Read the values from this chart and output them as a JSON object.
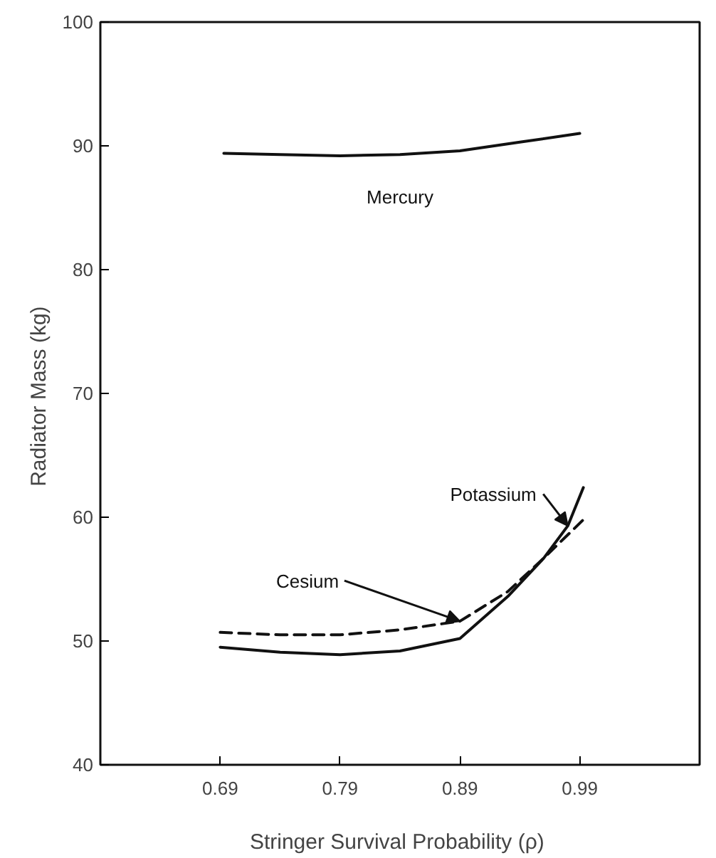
{
  "chart_data": {
    "type": "line",
    "xlabel": "Stringer  Survival Probability (ρ)",
    "ylabel": "Radiator Mass  (kg)",
    "xlim": [
      0.59,
      1.09
    ],
    "ylim": [
      40,
      100
    ],
    "xticks": [
      0.69,
      0.79,
      0.89,
      0.99
    ],
    "yticks": [
      40,
      50,
      60,
      70,
      80,
      90,
      100
    ],
    "grid": false,
    "legend": false,
    "series": [
      {
        "name": "Mercury",
        "color": "#111111",
        "line_style": "solid",
        "x": [
          0.693,
          0.74,
          0.79,
          0.84,
          0.89,
          0.94,
          0.99
        ],
        "values": [
          89.4,
          89.3,
          89.2,
          89.3,
          89.6,
          90.3,
          91.0
        ]
      },
      {
        "name": "Potassium",
        "color": "#111111",
        "line_style": "solid",
        "x": [
          0.69,
          0.74,
          0.79,
          0.84,
          0.89,
          0.93,
          0.96,
          0.98,
          0.993
        ],
        "values": [
          49.5,
          49.1,
          48.9,
          49.2,
          50.2,
          53.6,
          56.7,
          59.3,
          62.4
        ]
      },
      {
        "name": "Cesium",
        "color": "#111111",
        "line_style": "dashed",
        "x": [
          0.69,
          0.74,
          0.79,
          0.84,
          0.89,
          0.93,
          0.96,
          0.993
        ],
        "values": [
          50.7,
          50.5,
          50.5,
          50.9,
          51.6,
          54.0,
          56.7,
          59.8
        ]
      }
    ]
  }
}
